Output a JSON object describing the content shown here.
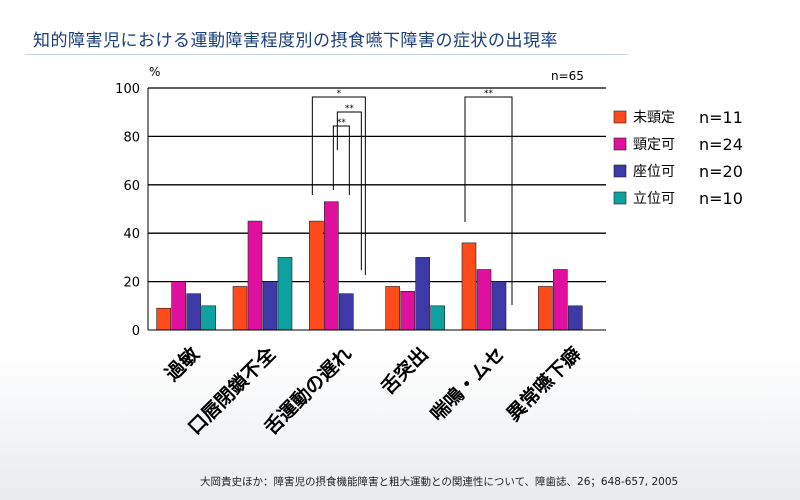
{
  "title": "知的障害児における運動障害程度別の摂食嚥下障害の症状の出現率",
  "citation": "大岡貴史ほか：障害児の摂食機能障害と粗大運動との関連性について、障歯誌、26；648-657, 2005",
  "chart_data": {
    "type": "bar",
    "ylabel": "%",
    "ylim": [
      0,
      100
    ],
    "yticks": [
      0,
      20,
      40,
      60,
      80,
      100
    ],
    "sample_size": "n=65",
    "categories": [
      "過敏",
      "口唇閉鎖不全",
      "舌運動の遅れ",
      "舌突出",
      "喘鳴・ムセ",
      "異常嚥下癖"
    ],
    "series": [
      {
        "name": "未頸定",
        "count": "n=11",
        "color": "#ff4a1c",
        "values": [
          9,
          18,
          45,
          18,
          36,
          18
        ]
      },
      {
        "name": "頸定可",
        "count": "n=24",
        "color": "#e0109f",
        "values": [
          20,
          45,
          53,
          16,
          25,
          25
        ]
      },
      {
        "name": "座位可",
        "count": "n=20",
        "color": "#3d3aa8",
        "values": [
          15,
          20,
          15,
          30,
          20,
          10
        ]
      },
      {
        "name": "立位可",
        "count": "n=10",
        "color": "#0fa0a0",
        "values": [
          10,
          30,
          0,
          10,
          0,
          0
        ]
      }
    ],
    "grid": true,
    "legend_position": "right",
    "significance_marks": [
      "*",
      "**",
      "**",
      "**"
    ]
  }
}
